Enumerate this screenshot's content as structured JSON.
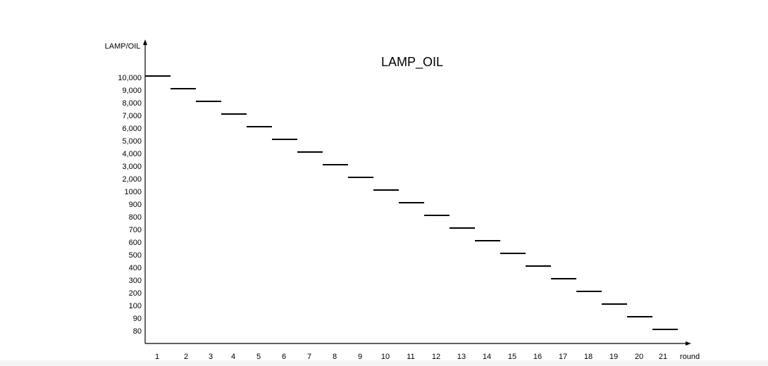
{
  "chart_data": {
    "type": "line",
    "title": "LAMP_OIL",
    "xlabel": "round",
    "ylabel": "LAMP/OIL",
    "x_ticks": [
      "1",
      "2",
      "3",
      "4",
      "5",
      "6",
      "7",
      "8",
      "9",
      "10",
      "11",
      "12",
      "13",
      "14",
      "15",
      "16",
      "17",
      "18",
      "19",
      "20",
      "21"
    ],
    "y_ticks": [
      "10,000",
      "9,000",
      "8,000",
      "7,000",
      "6,000",
      "5,000",
      "4,000",
      "3,000",
      "2,000",
      "1000",
      "900",
      "800",
      "700",
      "600",
      "500",
      "400",
      "300",
      "200",
      "100",
      "90",
      "80"
    ],
    "x": [
      1,
      2,
      3,
      4,
      5,
      6,
      7,
      8,
      9,
      10,
      11,
      12,
      13,
      14,
      15,
      16,
      17,
      18,
      19,
      20,
      21
    ],
    "values": [
      10000,
      9000,
      8000,
      7000,
      6000,
      5000,
      4000,
      3000,
      2000,
      1000,
      900,
      800,
      700,
      600,
      500,
      400,
      300,
      200,
      100,
      90,
      80
    ],
    "y_scale": "categorical",
    "grid": false,
    "line_color": "#000000"
  }
}
